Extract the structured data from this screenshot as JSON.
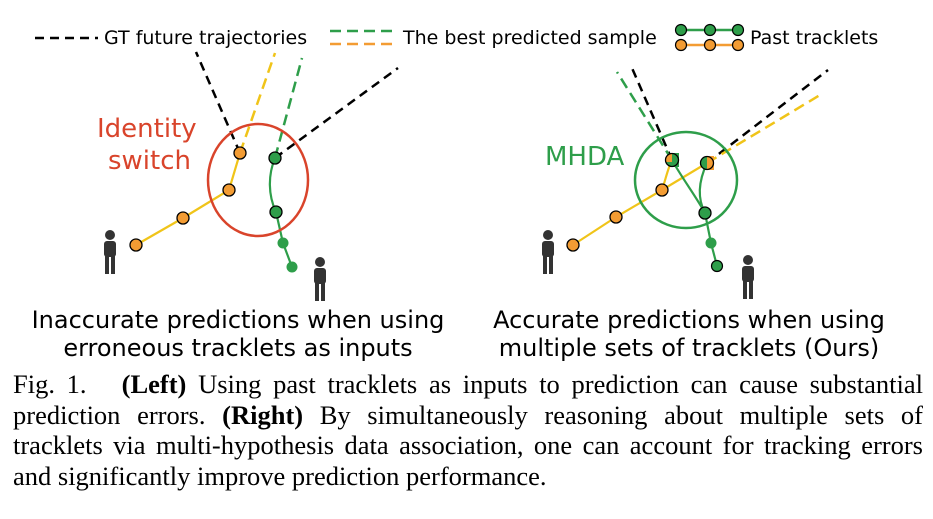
{
  "legend": {
    "gt_label": "GT future trajectories",
    "best_label": "The best predicted sample",
    "past_label": "Past tracklets"
  },
  "left_panel": {
    "callout_line1": "Identity",
    "callout_line2": "switch",
    "caption_line1": "Inaccurate predictions when using",
    "caption_line2": "erroneous tracklets as inputs"
  },
  "right_panel": {
    "callout": "MHDA",
    "caption_line1": "Accurate predictions when using",
    "caption_line2": "multiple sets of tracklets (Ours)"
  },
  "caption": {
    "fig_label": "Fig. 1.",
    "left_tag": "(Left)",
    "text1": "Using past tracklets as inputs to prediction can cause substantial prediction errors.",
    "right_tag": "(Right)",
    "text2": "By simultaneously reasoning about multiple sets of tracklets via multi-hypothesis data association, one can account for tracking errors and significantly improve prediction performance."
  },
  "colors": {
    "orange": "#f39c33",
    "yellow": "#f0c419",
    "green": "#2e9e4a",
    "red": "#d9442b",
    "black": "#000000"
  }
}
